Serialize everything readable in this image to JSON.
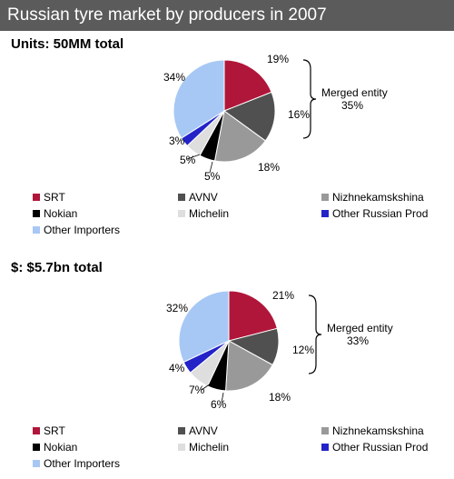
{
  "title": "Russian tyre market by producers in 2007",
  "merged_label_line1": "Merged entity",
  "legend": [
    {
      "name": "SRT",
      "color": "#b0163a"
    },
    {
      "name": "AVNV",
      "color": "#505050"
    },
    {
      "name": "Nizhnekamskshina",
      "color": "#999999"
    },
    {
      "name": "Nokian",
      "color": "#000000"
    },
    {
      "name": "Michelin",
      "color": "#dedede"
    },
    {
      "name": "Other Russian Prod",
      "color": "#2323c8"
    },
    {
      "name": "Other Importers",
      "color": "#a7c8f5"
    }
  ],
  "chart_data": [
    {
      "type": "pie",
      "title": "Units: 50MM total",
      "categories": [
        "SRT",
        "AVNV",
        "Nizhnekamskshina",
        "Nokian",
        "Michelin",
        "Other Russian Prod",
        "Other Importers"
      ],
      "values": [
        19,
        16,
        18,
        5,
        5,
        3,
        34
      ],
      "data_labels": [
        "19%",
        "16%",
        "18%",
        "5%",
        "5%",
        "3%",
        "34%"
      ],
      "annotation": {
        "text_line1": "Merged entity",
        "text_line2": "35%",
        "covers": [
          "SRT",
          "AVNV"
        ]
      }
    },
    {
      "type": "pie",
      "title": "$: $5.7bn total",
      "categories": [
        "SRT",
        "AVNV",
        "Nizhnekamskshina",
        "Nokian",
        "Michelin",
        "Other Russian Prod",
        "Other Importers"
      ],
      "values": [
        21,
        12,
        18,
        6,
        7,
        4,
        32
      ],
      "data_labels": [
        "21%",
        "12%",
        "18%",
        "6%",
        "7%",
        "4%",
        "32%"
      ],
      "annotation": {
        "text_line1": "Merged entity",
        "text_line2": "33%",
        "covers": [
          "SRT",
          "AVNV"
        ]
      }
    }
  ]
}
